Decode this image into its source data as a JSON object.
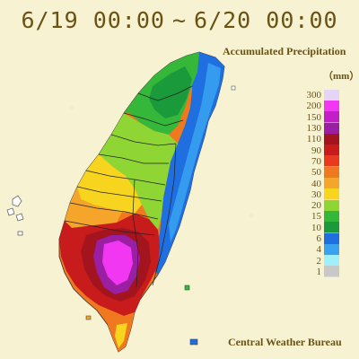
{
  "title": {
    "start": "6/19 00:00",
    "separator": "~",
    "end": "6/20 00:00"
  },
  "legend": {
    "title": "Accumulated Precipitation",
    "unit": "（mm）",
    "levels": [
      {
        "label": "300",
        "color": "#e6d4f7"
      },
      {
        "label": "200",
        "color": "#f237f2"
      },
      {
        "label": "150",
        "color": "#c21fc9"
      },
      {
        "label": "130",
        "color": "#9b1fa3"
      },
      {
        "label": "110",
        "color": "#a3141e"
      },
      {
        "label": "90",
        "color": "#c81c1c"
      },
      {
        "label": "70",
        "color": "#ea3a1e"
      },
      {
        "label": "50",
        "color": "#f0781e"
      },
      {
        "label": "40",
        "color": "#f5a52a"
      },
      {
        "label": "30",
        "color": "#f7d51e"
      },
      {
        "label": "20",
        "color": "#8fd634"
      },
      {
        "label": "15",
        "color": "#35b83a"
      },
      {
        "label": "10",
        "color": "#1a9a3a"
      },
      {
        "label": "6",
        "color": "#1f6fe0"
      },
      {
        "label": "4",
        "color": "#3aa3f0"
      },
      {
        "label": "2",
        "color": "#9ff0fa"
      },
      {
        "label": "1",
        "color": "#c8c8c8"
      }
    ]
  },
  "credit": "Central Weather Bureau",
  "icons": {
    "map": "rainfall-map-taiwan"
  }
}
